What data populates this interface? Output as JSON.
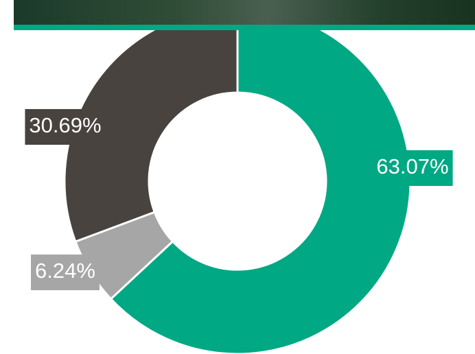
{
  "chart_data": {
    "type": "donut",
    "values": [
      63.07,
      6.24,
      30.69
    ],
    "value_labels": [
      "63.07%",
      "6.24%",
      "30.69%"
    ],
    "colors": [
      "#00a884",
      "#a6a6a6",
      "#48433e"
    ]
  }
}
